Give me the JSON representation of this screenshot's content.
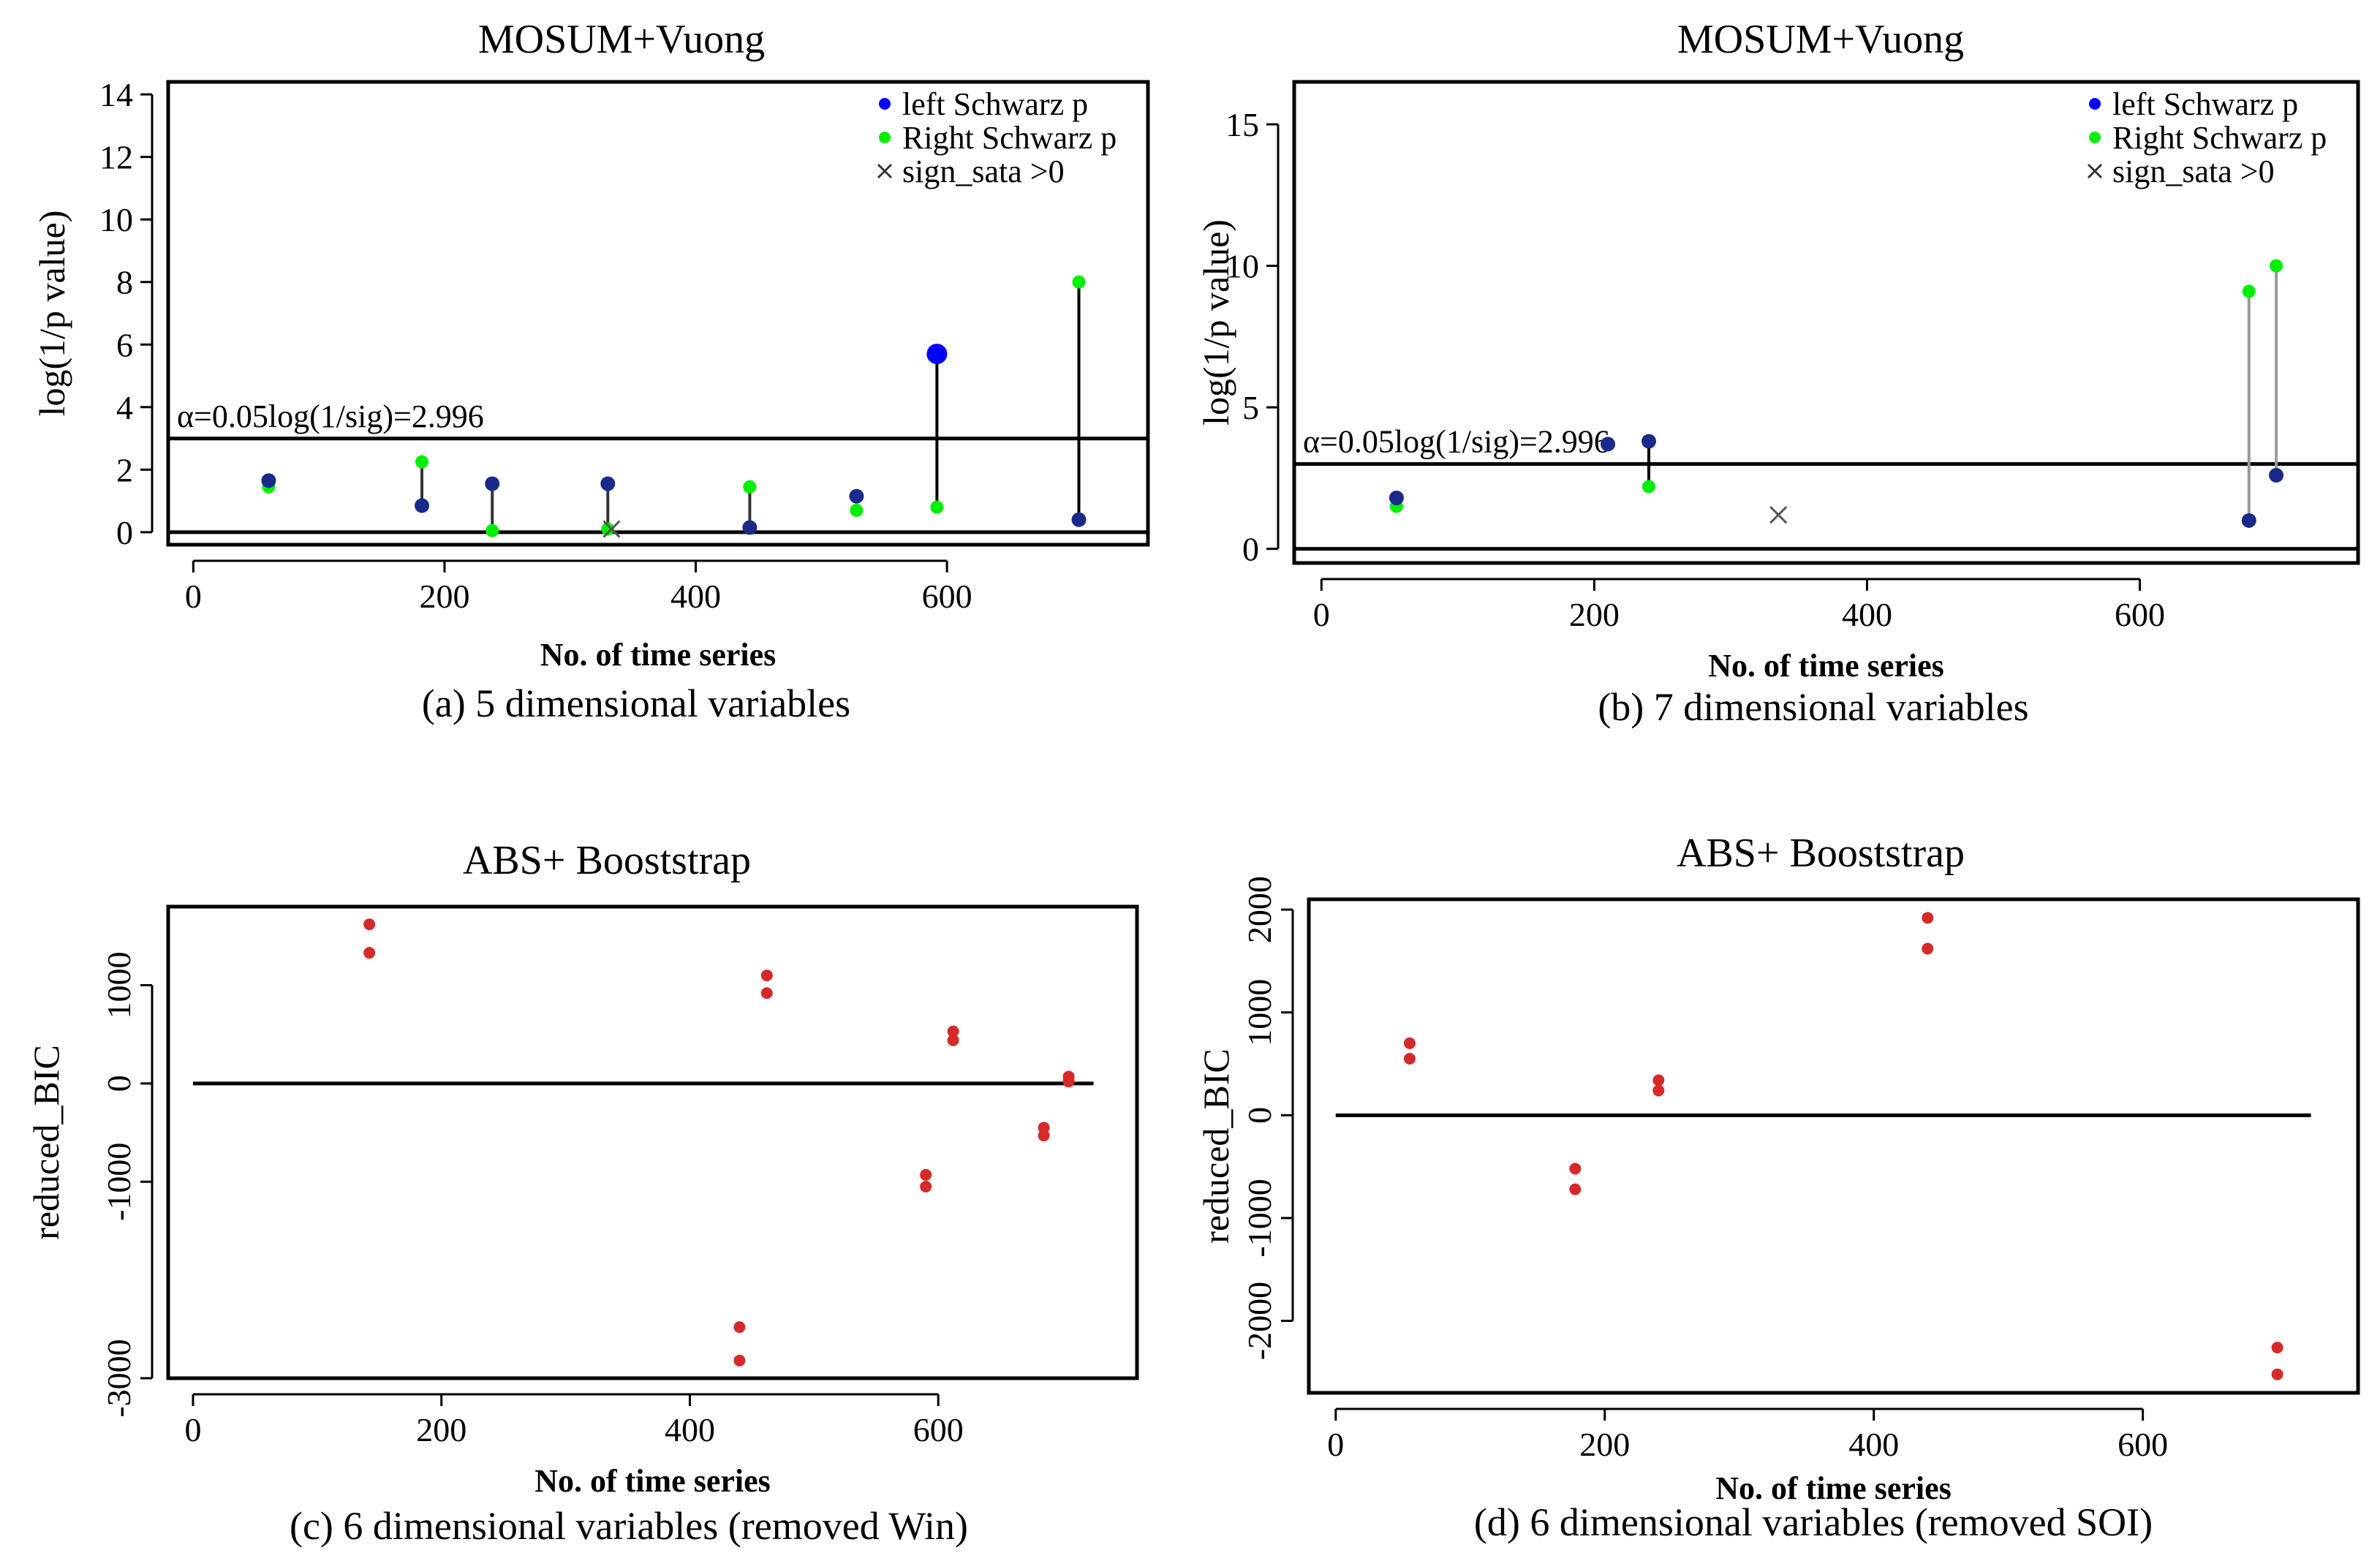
{
  "chart_data": [
    {
      "type": "scatter",
      "title": "MOSUM+Vuong",
      "caption": "(a)  5 dimensional variables",
      "xlabel": "No. of time series",
      "ylabel": "log(1/p value)",
      "xlim": [
        -20,
        760
      ],
      "ylim": [
        -0.4,
        14.4
      ],
      "xticks": [
        0,
        200,
        400,
        600
      ],
      "yticks": [
        0,
        2,
        4,
        6,
        8,
        10,
        12,
        14
      ],
      "hlines": [
        0,
        2.996
      ],
      "threshold_label": "α=0.05log(1/sig)=2.996",
      "legend": [
        {
          "label": "left Schwarz p",
          "marker": "dot",
          "color": "#0000ff"
        },
        {
          "label": "Right Schwarz p",
          "marker": "dot",
          "color": "#00ee00"
        },
        {
          "label": "sign_sata >0",
          "marker": "x",
          "color": "#333333"
        }
      ],
      "stems": [
        {
          "x": 60,
          "left": 1.65,
          "right": 1.45,
          "line": "#333333"
        },
        {
          "x": 182,
          "left": 0.85,
          "right": 2.25,
          "line": "#333333"
        },
        {
          "x": 238,
          "left": 1.55,
          "right": 0.05,
          "line": "#333333"
        },
        {
          "x": 330,
          "left": 1.55,
          "right": 0.1,
          "line": "#333333"
        },
        {
          "x": 443,
          "left": 0.15,
          "right": 1.45,
          "line": "#333333"
        },
        {
          "x": 528,
          "left": 1.15,
          "right": 0.7,
          "line": null
        },
        {
          "x": 592,
          "left": 5.7,
          "right": 0.8,
          "line": "#000000"
        },
        {
          "x": 705,
          "left": 0.4,
          "right": 8.0,
          "line": "#000000"
        }
      ],
      "crosses": [
        {
          "x": 333,
          "y": 0.1
        }
      ]
    },
    {
      "type": "scatter",
      "title": "MOSUM+Vuong",
      "caption": "(b) 7 dimensional variables",
      "xlabel": "No. of time series",
      "ylabel": "log(1/p value)",
      "xlim": [
        -20,
        760
      ],
      "ylim": [
        -0.5,
        16.5
      ],
      "xticks": [
        0,
        200,
        400,
        600
      ],
      "yticks": [
        0,
        5,
        10,
        15
      ],
      "hlines": [
        0,
        2.996
      ],
      "threshold_label": "α=0.05log(1/sig)=2.996",
      "legend": [
        {
          "label": "left Schwarz p",
          "marker": "dot",
          "color": "#0000ff"
        },
        {
          "label": "Right Schwarz p",
          "marker": "dot",
          "color": "#00ee00"
        },
        {
          "label": "sign_sata >0",
          "marker": "x",
          "color": "#333333"
        }
      ],
      "stems": [
        {
          "x": 55,
          "left": 1.8,
          "right": 1.5,
          "line": null
        },
        {
          "x": 210,
          "left": 3.7,
          "right": null,
          "line": null
        },
        {
          "x": 240,
          "left": 3.8,
          "right": 2.2,
          "line": "#000000"
        },
        {
          "x": 680,
          "left": 1.0,
          "right": 9.1,
          "line": "#999999"
        },
        {
          "x": 700,
          "left": 2.6,
          "right": 10.0,
          "line": "#999999"
        }
      ],
      "crosses": [
        {
          "x": 335,
          "y": 1.2
        }
      ]
    },
    {
      "type": "scatter",
      "title": "ABS+ Booststrap",
      "caption": "(c)  6 dimensional variables (removed Win)",
      "xlabel": "No. of time series",
      "ylabel": "reduced_BIC",
      "xlim": [
        -20,
        760
      ],
      "ylim": [
        -3000,
        1800
      ],
      "xticks": [
        0,
        200,
        400,
        600
      ],
      "yticks": [
        -3000,
        -1000,
        0,
        1000
      ],
      "hlines": [
        0
      ],
      "points": [
        {
          "x": 142,
          "y": 1620
        },
        {
          "x": 142,
          "y": 1330
        },
        {
          "x": 462,
          "y": 1100
        },
        {
          "x": 462,
          "y": 920
        },
        {
          "x": 612,
          "y": 530
        },
        {
          "x": 612,
          "y": 440
        },
        {
          "x": 440,
          "y": -2480
        },
        {
          "x": 440,
          "y": -2820
        },
        {
          "x": 590,
          "y": -930
        },
        {
          "x": 590,
          "y": -1050
        },
        {
          "x": 685,
          "y": -450
        },
        {
          "x": 685,
          "y": -530
        },
        {
          "x": 705,
          "y": 70
        },
        {
          "x": 705,
          "y": 20
        }
      ]
    },
    {
      "type": "scatter",
      "title": "ABS+ Booststrap",
      "caption": "(d)  6 dimensional variables (removed SOI)",
      "xlabel": "No. of time series",
      "ylabel": "reduced_BIC",
      "xlim": [
        -20,
        760
      ],
      "ylim": [
        -2700,
        2100
      ],
      "xticks": [
        0,
        200,
        400,
        600
      ],
      "yticks": [
        -2000,
        -1000,
        0,
        1000,
        2000
      ],
      "hlines": [
        0
      ],
      "points": [
        {
          "x": 55,
          "y": 700
        },
        {
          "x": 55,
          "y": 550
        },
        {
          "x": 178,
          "y": -520
        },
        {
          "x": 178,
          "y": -720
        },
        {
          "x": 240,
          "y": 340
        },
        {
          "x": 240,
          "y": 240
        },
        {
          "x": 440,
          "y": 1920
        },
        {
          "x": 440,
          "y": 1620
        },
        {
          "x": 700,
          "y": -2260
        },
        {
          "x": 700,
          "y": -2520
        }
      ]
    }
  ]
}
